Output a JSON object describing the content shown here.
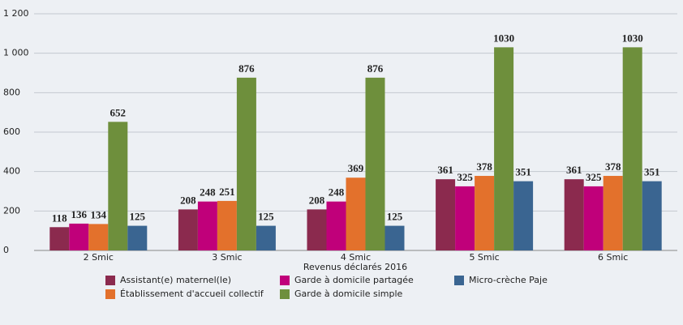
{
  "chart_data": {
    "type": "bar",
    "x_label": "Revenus déclarés 2016",
    "categories": [
      "2 Smic",
      "3 Smic",
      "4 Smic",
      "5 Smic",
      "6 Smic"
    ],
    "series": [
      {
        "name": "Assistant(e) maternel(le)",
        "color": "#8b2a4e",
        "values": [
          118,
          208,
          208,
          361,
          361
        ]
      },
      {
        "name": "Garde à domicile partagée",
        "color": "#c0007a",
        "values": [
          136,
          248,
          248,
          325,
          325
        ]
      },
      {
        "name": "Établissement d'accueil collectif",
        "color": "#e3712c",
        "values": [
          134,
          251,
          369,
          378,
          378
        ]
      },
      {
        "name": "Garde à domicile simple",
        "color": "#6e8f3c",
        "values": [
          652,
          876,
          876,
          1030,
          1030
        ]
      },
      {
        "name": "Micro-crèche Paje",
        "color": "#3a6591",
        "values": [
          125,
          125,
          125,
          351,
          351
        ]
      }
    ],
    "ylim": [
      0,
      1200
    ],
    "yticks": [
      0,
      200,
      400,
      600,
      800,
      {
        "value": 1000,
        "label": "1 000"
      },
      {
        "value": 1200,
        "label": "1 200"
      }
    ],
    "grid": true
  }
}
